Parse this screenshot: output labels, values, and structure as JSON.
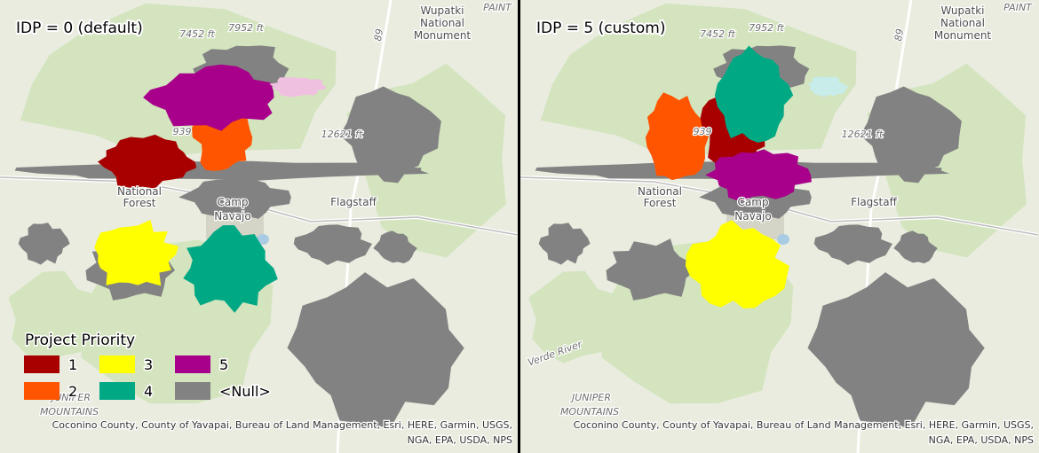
{
  "panels": [
    {
      "title": "IDP = 0 (default)",
      "map_labels": [
        "7452 ft",
        "7952 ft",
        "Wupatki",
        "National",
        "Monument",
        "PAINT",
        "89",
        "939",
        "12621 ft",
        "National",
        "Forest",
        "Camp",
        "Navajo",
        "Flagstaff",
        "JUNIPER",
        "MOUNTAINS"
      ]
    },
    {
      "title": "IDP = 5 (custom)",
      "map_labels": [
        "7452 ft",
        "7952 ft",
        "Wupatki",
        "National",
        "Monument",
        "PAINT",
        "89",
        "939",
        "12621 ft",
        "National",
        "Forest",
        "Camp",
        "Navajo",
        "Flagstaff",
        "JUNIPER",
        "MOUNTAINS",
        "Verde River"
      ]
    }
  ],
  "legend": {
    "title": "Project Priority",
    "items": [
      {
        "label": "1",
        "color": "#a80000"
      },
      {
        "label": "2",
        "color": "#ff5500"
      },
      {
        "label": "3",
        "color": "#ffff00"
      },
      {
        "label": "4",
        "color": "#00a884"
      },
      {
        "label": "5",
        "color": "#a8008a"
      },
      {
        "label": "<Null>",
        "color": "#828282"
      }
    ]
  },
  "attribution": [
    "Coconino County, County of Yavapai, Bureau of Land Management, Esri, HERE, Garmin, USGS,",
    "NGA, EPA, USDA, NPS"
  ]
}
